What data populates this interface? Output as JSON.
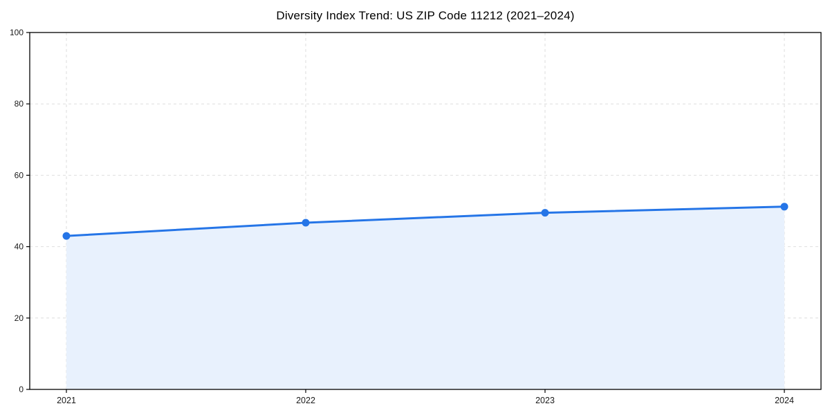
{
  "figure": {
    "background": "#ffffff"
  },
  "chart_data": {
    "type": "area",
    "title": "Diversity Index Trend: US ZIP Code 11212 (2021–2024)",
    "categories": [
      "2021",
      "2022",
      "2023",
      "2024"
    ],
    "x": [
      2021,
      2022,
      2023,
      2024
    ],
    "series": [
      {
        "name": "Diversity Index",
        "values": [
          43.0,
          46.7,
          49.5,
          51.2
        ]
      }
    ],
    "xlabel": "",
    "ylabel": "",
    "ylim": [
      0,
      100
    ],
    "yticks": [
      0,
      20,
      40,
      60,
      80,
      100
    ],
    "grid": "dashed-both-axes",
    "legend": "none",
    "line_color": "#2575e7",
    "marker_color": "#2575e7",
    "fill_color": "#e8f1fd",
    "grid_color": "#dedede",
    "axis_color": "#000000",
    "tick_label_color": "#1a1a1a"
  }
}
